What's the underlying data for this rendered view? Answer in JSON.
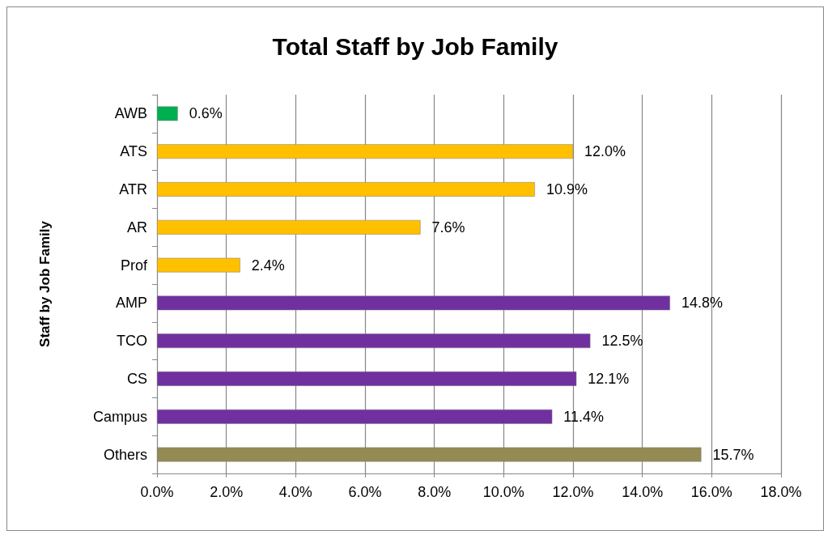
{
  "chart_data": {
    "type": "bar",
    "orientation": "horizontal",
    "title": "Total Staff by Job Family",
    "ylabel": "Staff by Job Family",
    "categories": [
      "AWB",
      "ATS",
      "ATR",
      "AR",
      "Prof",
      "AMP",
      "TCO",
      "CS",
      "Campus",
      "Others"
    ],
    "values": [
      0.6,
      12.0,
      10.9,
      7.6,
      2.4,
      14.8,
      12.5,
      12.1,
      11.4,
      15.7
    ],
    "colors": [
      "#00b050",
      "#ffc000",
      "#ffc000",
      "#ffc000",
      "#ffc000",
      "#7030a0",
      "#7030a0",
      "#7030a0",
      "#7030a0",
      "#948a54"
    ],
    "value_labels": [
      "0.6%",
      "12.0%",
      "10.9%",
      "7.6%",
      "2.4%",
      "14.8%",
      "12.5%",
      "12.1%",
      "11.4%",
      "15.7%"
    ],
    "xlim": [
      0,
      18
    ],
    "xticks": [
      {
        "value": 0,
        "label": "0.0%"
      },
      {
        "value": 2,
        "label": "2.0%"
      },
      {
        "value": 4,
        "label": "4.0%"
      },
      {
        "value": 6,
        "label": "6.0%"
      },
      {
        "value": 8,
        "label": "8.0%"
      },
      {
        "value": 10,
        "label": "10.0%"
      },
      {
        "value": 12,
        "label": "12.0%"
      },
      {
        "value": 14,
        "label": "14.0%"
      },
      {
        "value": 16,
        "label": "16.0%"
      },
      {
        "value": 18,
        "label": "18.0%"
      }
    ],
    "grid": "x"
  }
}
